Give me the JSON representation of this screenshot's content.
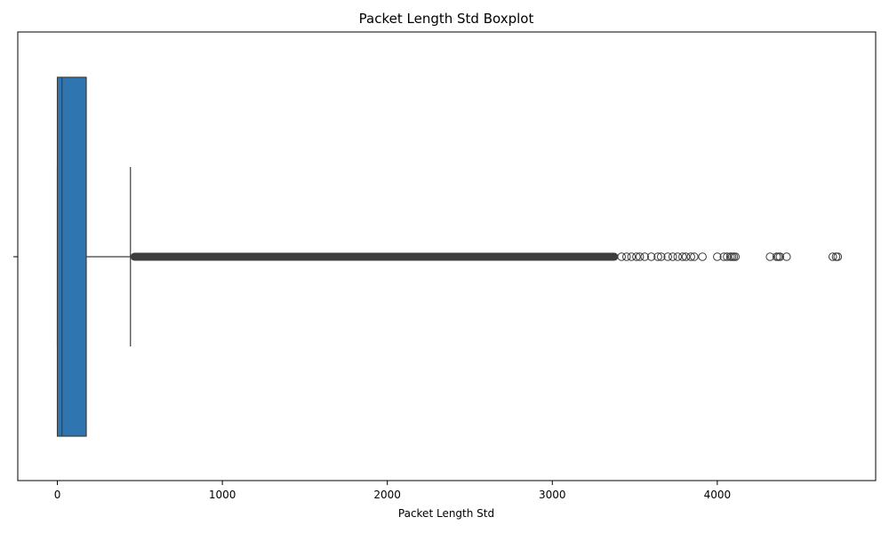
{
  "chart_data": {
    "type": "boxplot",
    "orientation": "horizontal",
    "title": "Packet Length Std Boxplot",
    "xlabel": "Packet Length Std",
    "ylabel": "",
    "xlim": [
      -240,
      4960
    ],
    "xticks": [
      0,
      1000,
      2000,
      3000,
      4000
    ],
    "xtick_labels": [
      "0",
      "1000",
      "2000",
      "3000",
      "4000"
    ],
    "grid": false,
    "box_color": "#2f75b0",
    "line_color": "#3d3d3d",
    "box": {
      "q1": 0,
      "median": 28,
      "q3": 175,
      "whisker_low": 0,
      "whisker_high": 443
    },
    "dense_outlier_range": [
      443,
      3400
    ],
    "outliers": [
      3420,
      3450,
      3480,
      3510,
      3530,
      3560,
      3600,
      3640,
      3660,
      3700,
      3730,
      3760,
      3790,
      3810,
      3840,
      3860,
      3910,
      4000,
      4040,
      4060,
      4080,
      4090,
      4100,
      4110,
      4320,
      4360,
      4370,
      4380,
      4420,
      4700,
      4720,
      4730
    ]
  }
}
